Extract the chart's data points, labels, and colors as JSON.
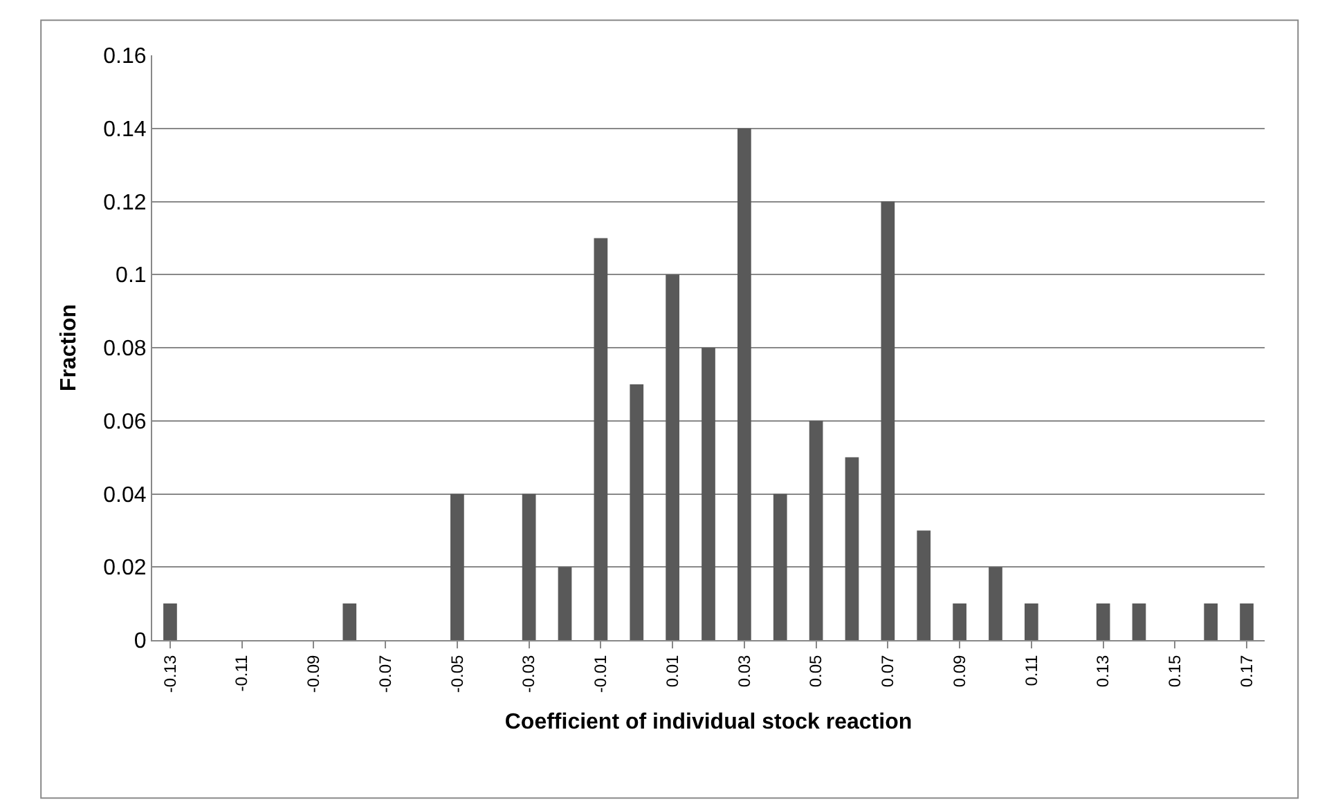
{
  "chart_data": {
    "type": "bar",
    "xlabel": "Coefficient of individual stock reaction",
    "ylabel": "Fraction",
    "categories": [
      "-0.13",
      null,
      "-0.11",
      null,
      "-0.09",
      null,
      "-0.07",
      null,
      "-0.05",
      null,
      "-0.03",
      null,
      "-0.01",
      null,
      "0.01",
      null,
      "0.03",
      null,
      "0.05",
      null,
      "0.07",
      null,
      "0.09",
      null,
      "0.11",
      null,
      "0.13",
      null,
      "0.15",
      null,
      "0.17"
    ],
    "values": [
      0.01,
      0,
      0,
      0,
      0,
      0.01,
      0,
      0,
      0.04,
      0,
      0.04,
      0.02,
      0.11,
      0.07,
      0.1,
      0.08,
      0.14,
      0.04,
      0.06,
      0.05,
      0.12,
      0.03,
      0.01,
      0.02,
      0.01,
      0,
      0.01,
      0.01,
      0,
      0.01,
      0.01
    ],
    "color": "#595959",
    "ylim": [
      0,
      0.16
    ],
    "yticks": [
      0,
      0.02,
      0.04,
      0.06,
      0.08,
      0.1,
      0.12,
      0.14,
      0.16
    ],
    "grid": "y"
  }
}
